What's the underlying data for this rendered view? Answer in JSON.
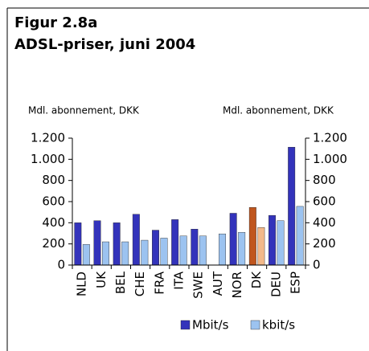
{
  "chart_data": {
    "type": "bar",
    "title": "Figur 2.8a",
    "subtitle": "ADSL-priser, juni 2004",
    "ylabel": "Mdl. abonnement, DKK",
    "y2label": "Mdl. abonnement, DKK",
    "categories": [
      "NLD",
      "UK",
      "BEL",
      "CHE",
      "FRA",
      "ITA",
      "SWE",
      "AUT",
      "NOR",
      "DK",
      "DEU",
      "ESP"
    ],
    "series": [
      {
        "name": "Mbit/s",
        "color": "#3333bb",
        "colors": [
          "#3333bb",
          "#3333bb",
          "#3333bb",
          "#3333bb",
          "#3333bb",
          "#3333bb",
          "#3333bb",
          "#3333bb",
          "#3333bb",
          "#c0561e",
          "#3333bb",
          "#3333bb"
        ],
        "values": [
          400,
          420,
          400,
          480,
          330,
          430,
          340,
          null,
          490,
          545,
          470,
          1115
        ]
      },
      {
        "name": "kbit/s",
        "color": "#9cc3f0",
        "colors": [
          "#9cc3f0",
          "#9cc3f0",
          "#9cc3f0",
          "#9cc3f0",
          "#9cc3f0",
          "#9cc3f0",
          "#9cc3f0",
          "#9cc3f0",
          "#9cc3f0",
          "#f3b98a",
          "#9cc3f0",
          "#9cc3f0"
        ],
        "values": [
          195,
          220,
          220,
          235,
          255,
          275,
          275,
          295,
          310,
          355,
          420,
          555
        ]
      }
    ],
    "ylim": [
      0,
      1200
    ],
    "yticks": [
      0,
      200,
      400,
      600,
      800,
      {
        "value": 1000,
        "label": "1.000"
      },
      {
        "value": 1200,
        "label": "1.200"
      }
    ],
    "y2lim": [
      0,
      1200
    ],
    "y2ticks": [
      0,
      200,
      400,
      600,
      800,
      {
        "value": 1000,
        "label": "1.000"
      },
      {
        "value": 1200,
        "label": "1.200"
      }
    ],
    "legend": "bottom"
  }
}
